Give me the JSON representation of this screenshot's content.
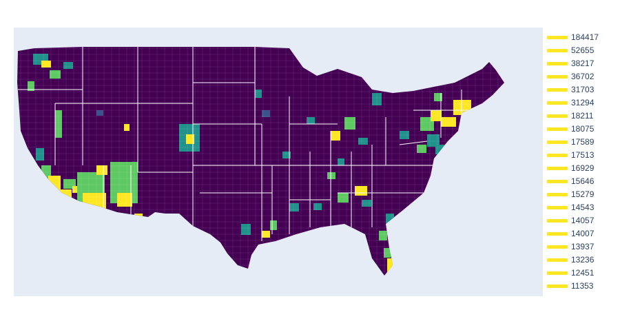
{
  "map": {
    "region": "United States (contiguous) county choropleth",
    "colorscale": [
      "#440154",
      "#3b528b",
      "#21918c",
      "#5ec962",
      "#fde725"
    ],
    "background": "#e5ecf6",
    "land_base_color": "#440154",
    "border_color": "#ffffff"
  },
  "legend": {
    "swatch_color": "#fde725",
    "items": [
      "184417",
      "52655",
      "38217",
      "36702",
      "31703",
      "31294",
      "18211",
      "18075",
      "17589",
      "17513",
      "16929",
      "15646",
      "15279",
      "14543",
      "14057",
      "14007",
      "13937",
      "13236",
      "12451",
      "11353"
    ]
  }
}
